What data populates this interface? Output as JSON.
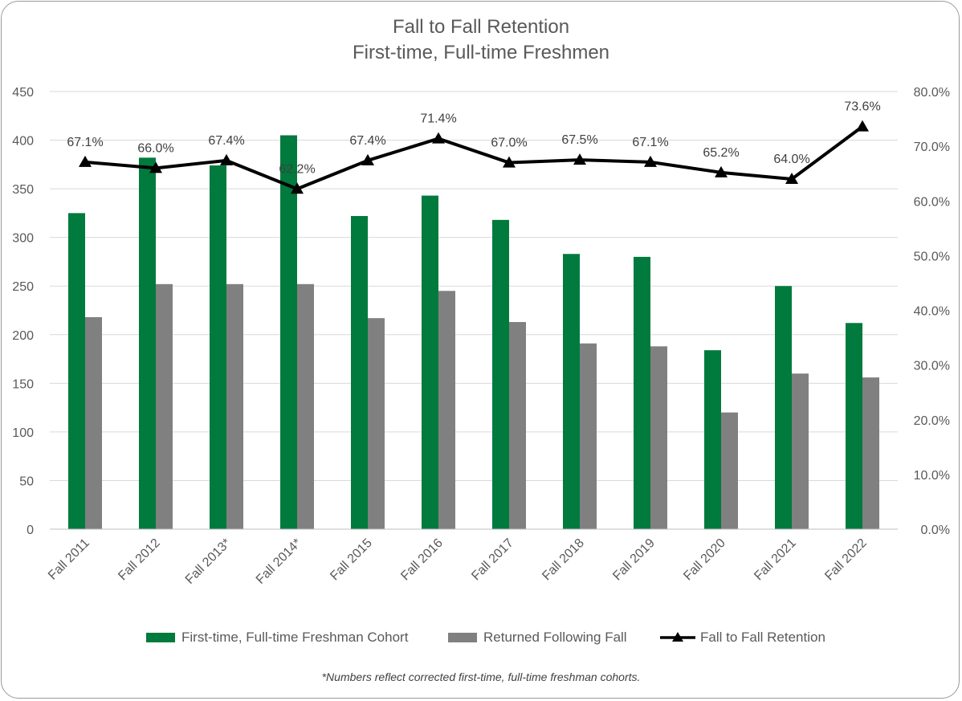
{
  "chart_data": {
    "type": "bar",
    "title": "Fall to Fall Retention",
    "subtitle": "First-time, Full-time Freshmen",
    "categories": [
      "Fall 2011",
      "Fall 2012",
      "Fall 2013*",
      "Fall 2014*",
      "Fall 2015",
      "Fall 2016",
      "Fall 2017",
      "Fall 2018",
      "Fall 2019",
      "Fall 2020",
      "Fall 2021",
      "Fall 2022"
    ],
    "series": [
      {
        "name": "First-time, Full-time Freshman Cohort",
        "type": "bar",
        "axis": "left",
        "color": "#007A3D",
        "values": [
          325,
          382,
          374,
          405,
          322,
          343,
          318,
          283,
          280,
          184,
          250,
          212
        ]
      },
      {
        "name": "Returned Following Fall",
        "type": "bar",
        "axis": "left",
        "color": "#808080",
        "values": [
          218,
          252,
          252,
          252,
          217,
          245,
          213,
          191,
          188,
          120,
          160,
          156
        ]
      },
      {
        "name": "Fall to Fall Retention",
        "type": "line",
        "axis": "right",
        "color": "#000000",
        "marker": "triangle",
        "values": [
          67.1,
          66.0,
          67.4,
          62.2,
          67.4,
          71.4,
          67.0,
          67.5,
          67.1,
          65.2,
          64.0,
          73.6
        ],
        "labels": [
          "67.1%",
          "66.0%",
          "67.4%",
          "62.2%",
          "67.4%",
          "71.4%",
          "67.0%",
          "67.5%",
          "67.1%",
          "65.2%",
          "64.0%",
          "73.6%"
        ]
      }
    ],
    "y_left": {
      "ylim": [
        0,
        450
      ],
      "ticks": [
        0,
        50,
        100,
        150,
        200,
        250,
        300,
        350,
        400,
        450
      ]
    },
    "y_right": {
      "ylim": [
        0,
        80
      ],
      "ticks": [
        "0.0%",
        "10.0%",
        "20.0%",
        "30.0%",
        "40.0%",
        "50.0%",
        "60.0%",
        "70.0%",
        "80.0%"
      ]
    },
    "grid": true,
    "legend_position": "bottom"
  },
  "legend": {
    "cohort": "First-time, Full-time Freshman Cohort",
    "returned": "Returned Following Fall",
    "retention": "Fall to Fall Retention"
  },
  "footnote": "*Numbers reflect corrected first-time, full-time freshman cohorts.",
  "colors": {
    "cohort": "#007A3D",
    "returned": "#808080",
    "line": "#000000",
    "grid": "#d9d9d9",
    "text": "#595959"
  }
}
